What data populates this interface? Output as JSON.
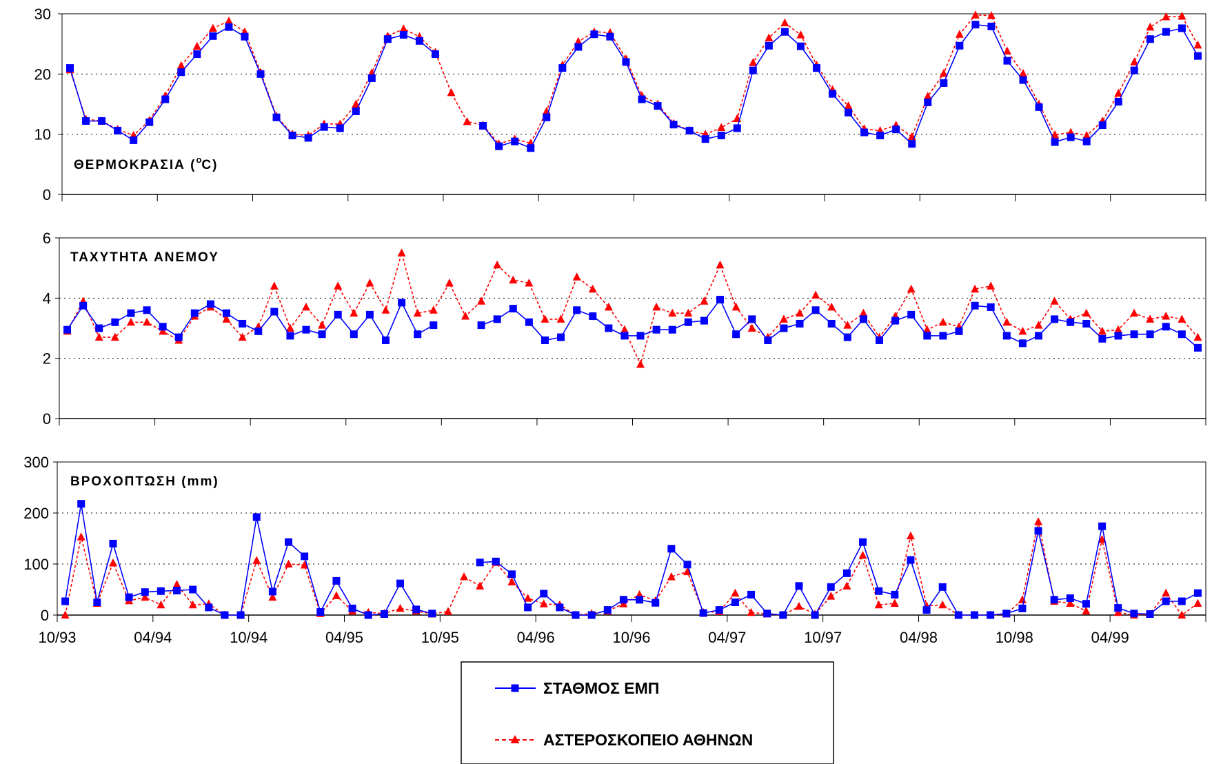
{
  "legend": {
    "series": [
      "ΣΤΑΘΜΟΣ ΕΜΠ",
      "ΑΣΤΕΡΟΣΚΟΠΕΙΟ ΑΘΗΝΩΝ"
    ],
    "placement": "bottom-center"
  },
  "colors": {
    "series_0": "#0000FF",
    "series_1": "#FF0000"
  },
  "chart_data": [
    {
      "type": "line",
      "title": "ΘΕΡΜΟΚΡΑΣΙΑ (oC)",
      "title_prefix": "ΘΕΡΜΟΚΡΑΣΙΑ (",
      "title_sup": "o",
      "title_suffix": "C)",
      "ylim": [
        0,
        30
      ],
      "yticks": [
        0,
        10,
        20,
        30
      ],
      "ytick_labels": [
        "0",
        "10",
        "20",
        "30"
      ],
      "grid": true,
      "series": [
        {
          "name": "ΣΤΑΘΜΟΣ ΕΜΠ",
          "values": [
            21,
            12.2,
            12.2,
            10.6,
            9,
            12,
            15.8,
            20.3,
            23.3,
            26.3,
            27.8,
            26.2,
            20,
            12.8,
            9.8,
            9.4,
            11.2,
            11,
            13.8,
            19.3,
            25.8,
            26.5,
            25.5,
            23.3,
            null,
            null,
            11.4,
            8,
            8.8,
            7.7,
            12.8,
            21,
            24.5,
            26.6,
            26.2,
            22,
            15.8,
            14.7,
            11.6,
            10.6,
            9.2,
            9.8,
            11,
            20.6,
            24.7,
            27,
            24.6,
            21,
            16.7,
            13.6,
            10.3,
            9.8,
            10.8,
            8.4,
            15.3,
            18.5,
            24.7,
            28.2,
            27.9,
            22.2,
            19,
            14.5,
            8.7,
            9.5,
            8.8,
            11.5,
            15.4,
            20.6,
            25.8,
            27,
            27.6,
            23
          ]
        },
        {
          "name": "ΑΣΤΕΡΟΣΚΟΠΕΙΟ ΑΘΗΝΩΝ",
          "values": [
            20.7,
            12.5,
            12.2,
            10.8,
            9.8,
            12.3,
            16.4,
            21.4,
            24.6,
            27.6,
            28.8,
            27,
            20.3,
            13,
            10,
            9.8,
            11.7,
            11.7,
            15,
            20.2,
            26.3,
            27.5,
            26.2,
            23.6,
            16.9,
            12.1,
            11.5,
            8.4,
            9.2,
            8.5,
            13.8,
            21.5,
            25.4,
            27,
            26.9,
            22.5,
            16.4,
            15,
            11.8,
            10.6,
            10,
            11.1,
            12.6,
            21.9,
            26,
            28.5,
            26.5,
            21.5,
            17.4,
            14.7,
            10.9,
            10.6,
            11.5,
            9.6,
            16.3,
            20.1,
            26.6,
            29.8,
            29.7,
            23.8,
            20.1,
            15,
            9.9,
            10.3,
            9.8,
            12.2,
            16.8,
            22,
            27.8,
            29.5,
            29.6,
            24.8
          ]
        }
      ]
    },
    {
      "type": "line",
      "title": "ΤΑΧΥΤΗΤΑ ΑΝΕΜΟΥ",
      "ylim": [
        0,
        6
      ],
      "yticks": [
        0,
        2,
        4,
        6
      ],
      "ytick_labels": [
        "0",
        "2",
        "4",
        "6"
      ],
      "grid": true,
      "series": [
        {
          "name": "ΣΤΑΘΜΟΣ ΕΜΠ",
          "values": [
            2.95,
            3.75,
            3,
            3.2,
            3.5,
            3.6,
            3.05,
            2.7,
            3.5,
            3.8,
            3.5,
            3.15,
            2.9,
            3.55,
            2.75,
            2.95,
            2.8,
            3.45,
            2.8,
            3.45,
            2.6,
            3.85,
            2.8,
            3.1,
            null,
            null,
            3.1,
            3.3,
            3.65,
            3.2,
            2.6,
            2.7,
            3.6,
            3.4,
            3,
            2.75,
            2.75,
            2.95,
            2.95,
            3.2,
            3.25,
            3.95,
            2.8,
            3.3,
            2.6,
            3,
            3.15,
            3.6,
            3.15,
            2.7,
            3.3,
            2.6,
            3.25,
            3.45,
            2.75,
            2.75,
            2.9,
            3.75,
            3.7,
            2.75,
            2.5,
            2.75,
            3.3,
            3.2,
            3.15,
            2.65,
            2.75,
            2.8,
            2.8,
            3.05,
            2.8,
            2.35
          ]
        },
        {
          "name": "ΑΣΤΕΡΟΣΚΟΠΕΙΟ ΑΘΗΝΩΝ",
          "values": [
            2.9,
            3.9,
            2.7,
            2.7,
            3.2,
            3.2,
            2.9,
            2.6,
            3.4,
            3.7,
            3.3,
            2.7,
            3.05,
            4.4,
            3,
            3.7,
            3.1,
            4.4,
            3.5,
            4.5,
            3.6,
            5.5,
            3.5,
            3.6,
            4.5,
            3.4,
            3.9,
            5.1,
            4.6,
            4.5,
            3.3,
            3.3,
            4.7,
            4.3,
            3.7,
            2.95,
            1.8,
            3.7,
            3.5,
            3.5,
            3.9,
            5.1,
            3.7,
            3,
            2.7,
            3.3,
            3.5,
            4.1,
            3.7,
            3.1,
            3.5,
            2.7,
            3.4,
            4.3,
            2.95,
            3.2,
            3.05,
            4.3,
            4.4,
            3.2,
            2.9,
            3.1,
            3.9,
            3.3,
            3.5,
            2.9,
            2.95,
            3.5,
            3.3,
            3.4,
            3.3,
            2.7
          ]
        }
      ]
    },
    {
      "type": "line",
      "title": "ΒΡΟΧΟΠΤΩΣΗ (mm)",
      "ylim": [
        0,
        300
      ],
      "yticks": [
        0,
        100,
        200,
        300
      ],
      "ytick_labels": [
        "0",
        "100",
        "200",
        "300"
      ],
      "grid": true,
      "x_tick_labels": [
        "10/93",
        "04/94",
        "10/94",
        "04/95",
        "10/95",
        "04/96",
        "10/96",
        "04/97",
        "10/97",
        "04/98",
        "10/98",
        "04/99"
      ],
      "series": [
        {
          "name": "ΣΤΑΘΜΟΣ ΕΜΠ",
          "values": [
            27,
            218,
            25,
            140,
            35,
            45,
            47,
            48,
            50,
            15,
            0,
            0,
            192,
            46,
            143,
            115,
            6,
            67,
            13,
            0,
            2,
            62,
            11,
            3,
            null,
            null,
            103,
            105,
            80,
            15,
            42,
            15,
            0,
            0,
            10,
            30,
            30,
            24,
            130,
            99,
            4,
            10,
            25,
            40,
            3,
            0,
            57,
            0,
            55,
            82,
            143,
            47,
            40,
            108,
            10,
            55,
            0,
            0,
            0,
            3,
            13,
            165,
            30,
            33,
            22,
            174,
            14,
            3,
            2,
            27,
            27,
            43
          ]
        },
        {
          "name": "ΑΣΤΕΡΟΣΚΟΠΕΙΟ ΑΘΗΝΩΝ",
          "values": [
            0,
            153,
            23,
            102,
            28,
            35,
            20,
            60,
            20,
            22,
            0,
            0,
            107,
            35,
            100,
            98,
            3,
            38,
            8,
            5,
            3,
            13,
            8,
            2,
            7,
            75,
            57,
            103,
            65,
            33,
            22,
            20,
            0,
            3,
            8,
            22,
            40,
            28,
            75,
            85,
            5,
            7,
            43,
            5,
            2,
            0,
            17,
            2,
            37,
            57,
            117,
            20,
            23,
            155,
            18,
            20,
            0,
            0,
            0,
            2,
            30,
            183,
            27,
            23,
            8,
            148,
            5,
            0,
            2,
            43,
            0,
            23
          ]
        }
      ]
    }
  ]
}
